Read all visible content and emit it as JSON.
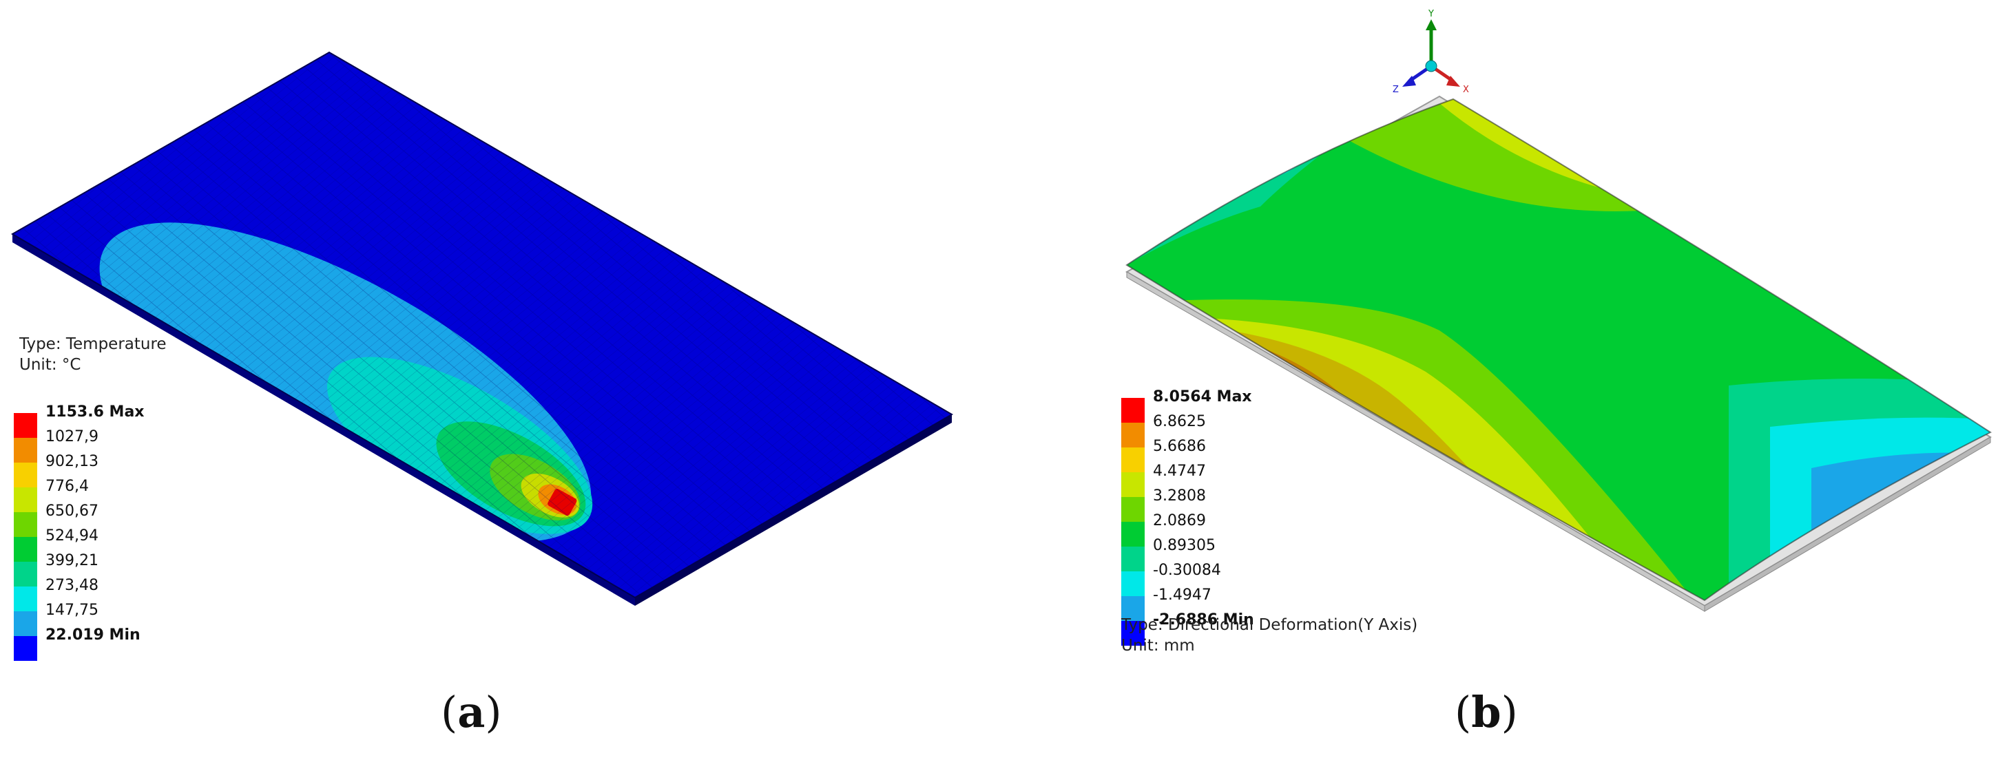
{
  "figure_a": {
    "caption_letter": "a",
    "result_type": "Type: Temperature",
    "unit": "Unit: °C",
    "legend": [
      {
        "label": "1153.6 Max",
        "color": "#ff0000",
        "bold": true
      },
      {
        "label": "1027,9",
        "color": "#f28c00"
      },
      {
        "label": "902,13",
        "color": "#f8d000"
      },
      {
        "label": "776,4",
        "color": "#c8e600"
      },
      {
        "label": "650,67",
        "color": "#6ed600"
      },
      {
        "label": "524,94",
        "color": "#00cc33"
      },
      {
        "label": "399,21",
        "color": "#00d48a"
      },
      {
        "label": "273,48",
        "color": "#00e8e8"
      },
      {
        "label": "147,75",
        "color": "#1aa6e8"
      },
      {
        "label": "22.019 Min",
        "color": "#0000ff",
        "bold": true
      }
    ]
  },
  "figure_b": {
    "caption_letter": "b",
    "result_type": "Type: Directional Deformation(Y Axis)",
    "unit": "Unit: mm",
    "axes": {
      "y": "Y",
      "x": "X",
      "z": "Z"
    },
    "legend": [
      {
        "label": "8.0564 Max",
        "color": "#ff0000",
        "bold": true
      },
      {
        "label": "6.8625",
        "color": "#f28c00"
      },
      {
        "label": "5.6686",
        "color": "#f8d000"
      },
      {
        "label": "4.4747",
        "color": "#c8e600"
      },
      {
        "label": "3.2808",
        "color": "#6ed600"
      },
      {
        "label": "2.0869",
        "color": "#00cc33"
      },
      {
        "label": "0.89305",
        "color": "#00d48a"
      },
      {
        "label": "-0.30084",
        "color": "#00e8e8"
      },
      {
        "label": "-1.4947",
        "color": "#1aa6e8"
      },
      {
        "label": "-2.6886 Min",
        "color": "#0000ff",
        "bold": true
      }
    ]
  }
}
